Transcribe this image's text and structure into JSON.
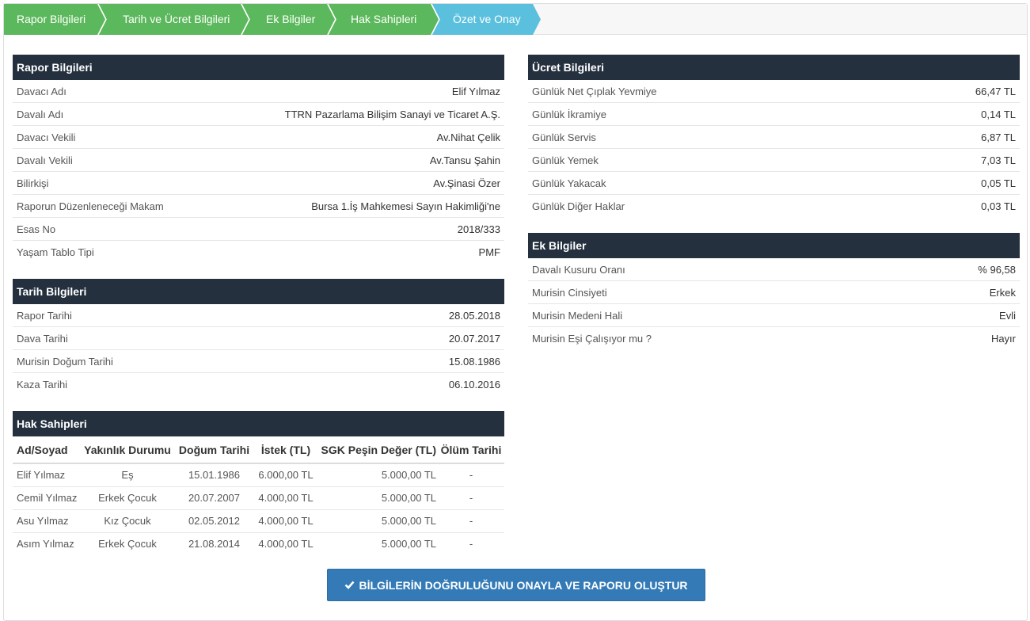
{
  "wizard": {
    "steps": [
      {
        "label": "Rapor Bilgileri",
        "color": "#5cb85c"
      },
      {
        "label": "Tarih ve Ücret Bilgileri",
        "color": "#5cb85c"
      },
      {
        "label": "Ek Bilgiler",
        "color": "#5cb85c"
      },
      {
        "label": "Hak Sahipleri",
        "color": "#5cb85c"
      },
      {
        "label": "Özet ve Onay",
        "color": "#5bc0de",
        "active": true
      }
    ]
  },
  "rapor": {
    "title": "Rapor Bilgileri",
    "rows": [
      {
        "label": "Davacı Adı",
        "value": "Elif Yılmaz"
      },
      {
        "label": "Davalı Adı",
        "value": "TTRN Pazarlama Bilişim Sanayi ve Ticaret A.Ş."
      },
      {
        "label": "Davacı Vekili",
        "value": "Av.Nihat Çelik"
      },
      {
        "label": "Davalı Vekili",
        "value": "Av.Tansu Şahin"
      },
      {
        "label": "Bilirkişi",
        "value": "Av.Şinasi Özer"
      },
      {
        "label": "Raporun Düzenleneceği Makam",
        "value": "Bursa 1.İş Mahkemesi Sayın Hakimliği'ne"
      },
      {
        "label": "Esas No",
        "value": "2018/333"
      },
      {
        "label": "Yaşam Tablo Tipi",
        "value": "PMF"
      }
    ]
  },
  "tarih": {
    "title": "Tarih Bilgileri",
    "rows": [
      {
        "label": "Rapor Tarihi",
        "value": "28.05.2018"
      },
      {
        "label": "Dava Tarihi",
        "value": "20.07.2017"
      },
      {
        "label": "Murisin Doğum Tarihi",
        "value": "15.08.1986"
      },
      {
        "label": "Kaza Tarihi",
        "value": "06.10.2016"
      }
    ]
  },
  "hak": {
    "title": "Hak Sahipleri",
    "columns": [
      "Ad/Soyad",
      "Yakınlık Durumu",
      "Doğum Tarihi",
      "İstek (TL)",
      "SGK Peşin Değer (TL)",
      "Ölüm Tarihi"
    ],
    "rows": [
      [
        "Elif Yılmaz",
        "Eş",
        "15.01.1986",
        "6.000,00 TL",
        "5.000,00 TL",
        "-"
      ],
      [
        "Cemil Yılmaz",
        "Erkek Çocuk",
        "20.07.2007",
        "4.000,00 TL",
        "5.000,00 TL",
        "-"
      ],
      [
        "Asu Yılmaz",
        "Kız Çocuk",
        "02.05.2012",
        "4.000,00 TL",
        "5.000,00 TL",
        "-"
      ],
      [
        "Asım Yılmaz",
        "Erkek Çocuk",
        "21.08.2014",
        "4.000,00 TL",
        "5.000,00 TL",
        "-"
      ]
    ]
  },
  "ucret": {
    "title": "Ücret Bilgileri",
    "rows": [
      {
        "label": "Günlük Net Çıplak Yevmiye",
        "value": "66,47 TL"
      },
      {
        "label": "Günlük İkramiye",
        "value": "0,14 TL"
      },
      {
        "label": "Günlük Servis",
        "value": "6,87 TL"
      },
      {
        "label": "Günlük Yemek",
        "value": "7,03 TL"
      },
      {
        "label": "Günlük Yakacak",
        "value": "0,05 TL"
      },
      {
        "label": "Günlük Diğer Haklar",
        "value": "0,03 TL"
      }
    ]
  },
  "ek": {
    "title": "Ek Bilgiler",
    "rows": [
      {
        "label": "Davalı Kusuru Oranı",
        "value": "% 96,58"
      },
      {
        "label": "Murisin Cinsiyeti",
        "value": "Erkek"
      },
      {
        "label": "Murisin Medeni Hali",
        "value": "Evli"
      },
      {
        "label": "Murisin Eşi Çalışıyor mu ?",
        "value": "Hayır"
      }
    ]
  },
  "confirm": {
    "label": "BİLGİLERİN DOĞRULUĞUNU ONAYLA VE RAPORU OLUŞTUR",
    "icon": "check-icon"
  },
  "colors": {
    "header_bg": "#24303e",
    "done_step": "#5cb85c",
    "active_step": "#5bc0de",
    "button": "#337ab7"
  }
}
